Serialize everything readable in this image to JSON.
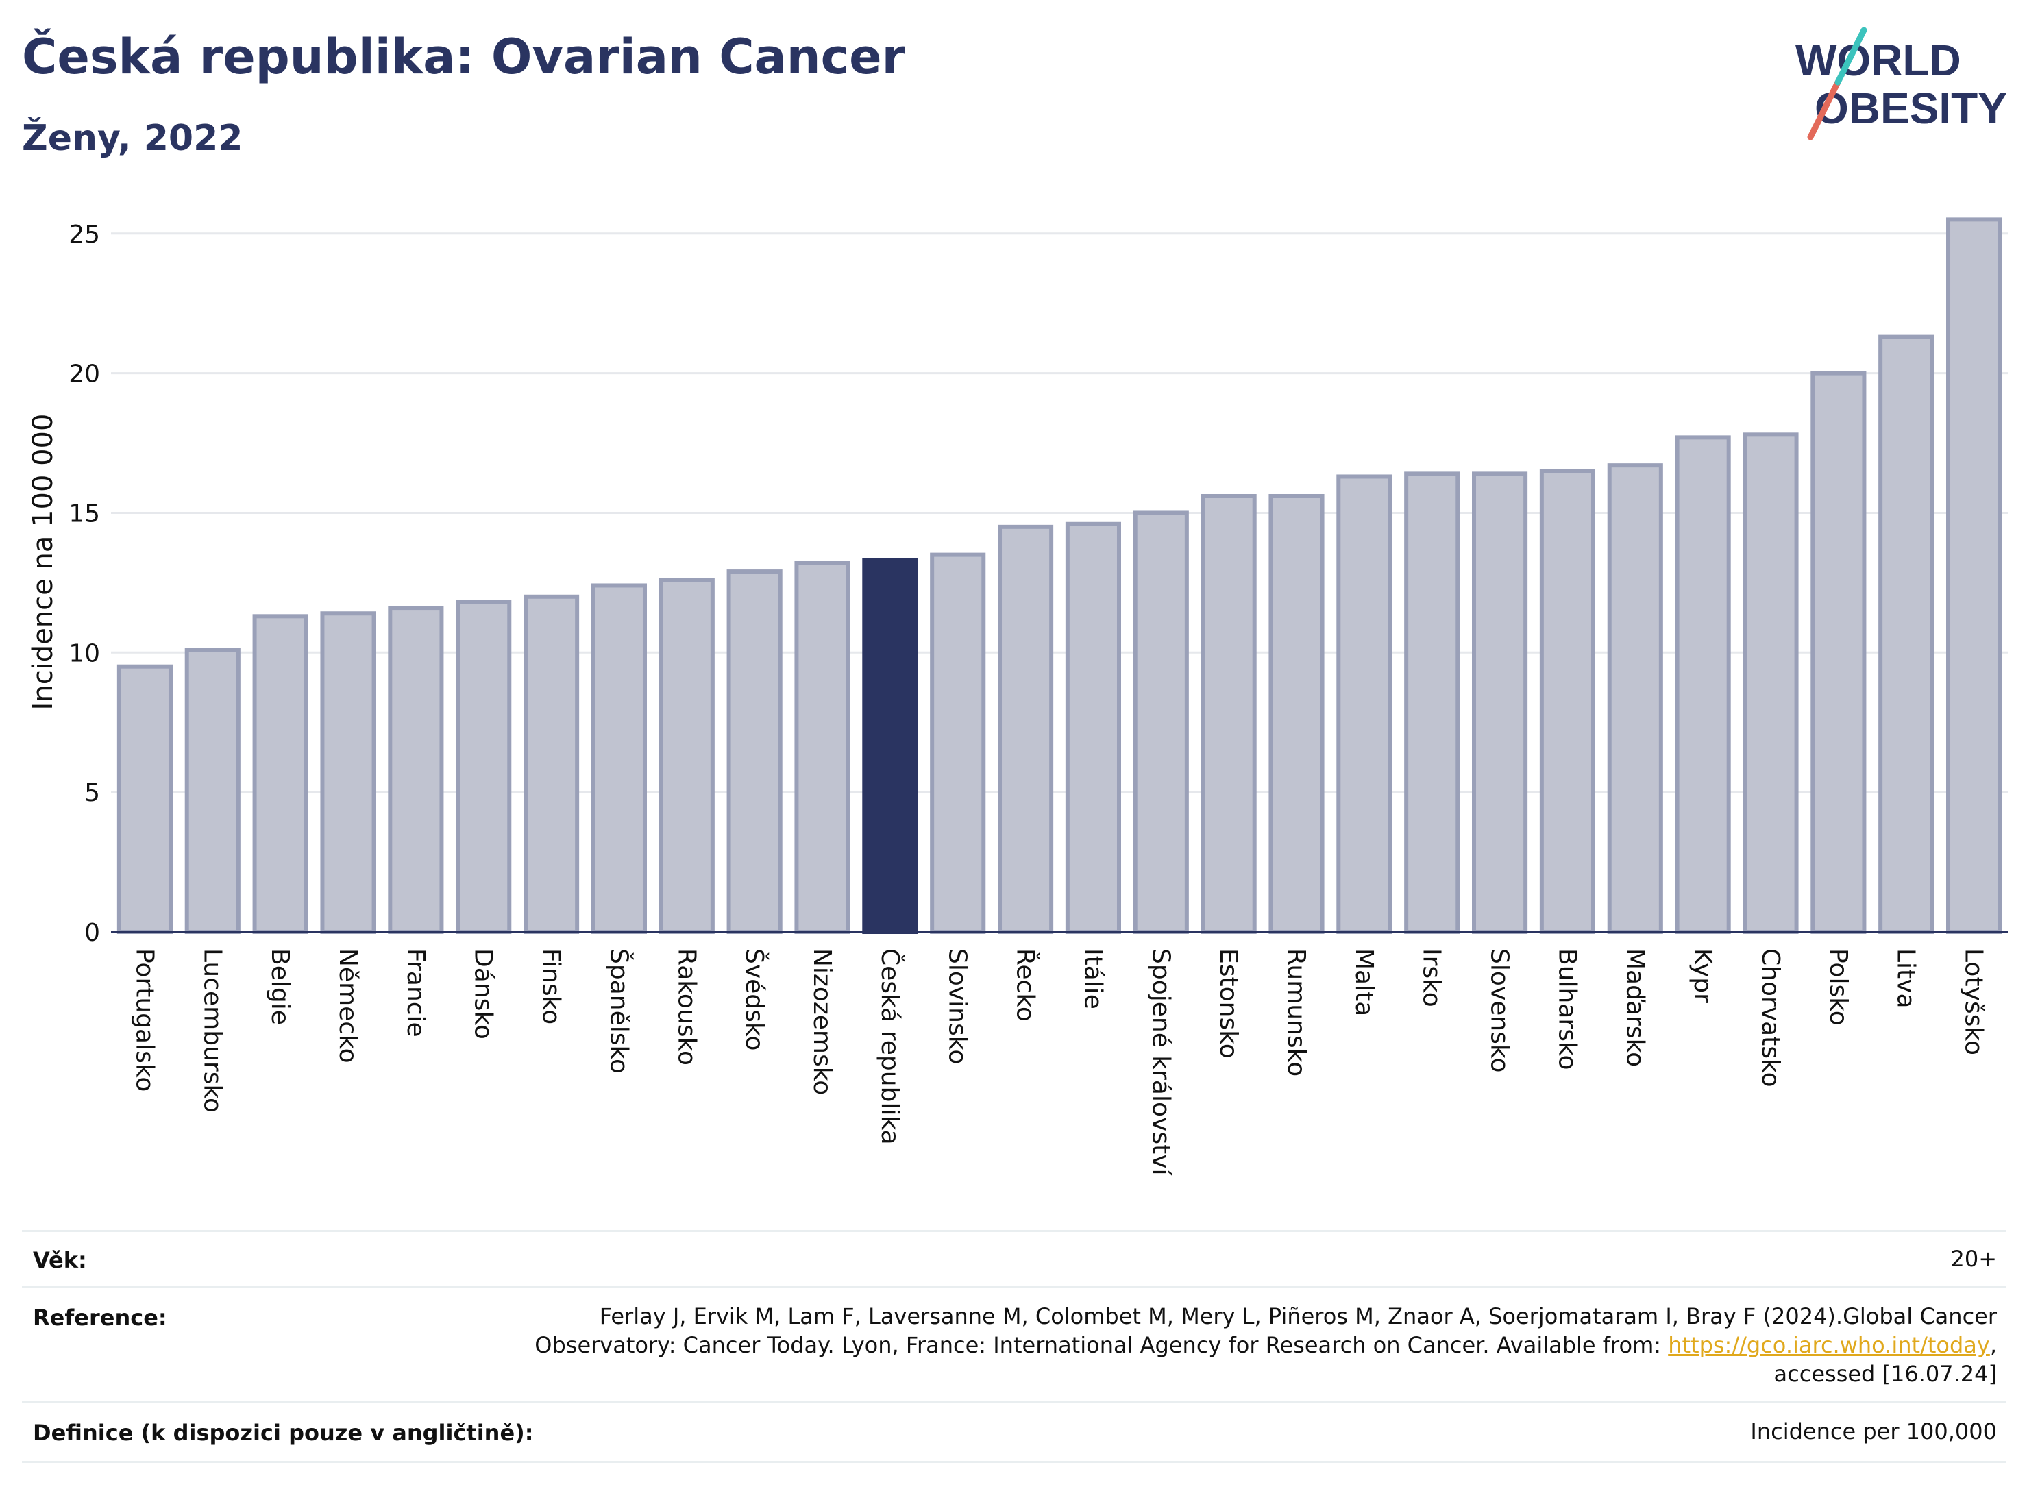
{
  "header": {
    "title": "Česká republika: Ovarian Cancer",
    "subtitle": "Ženy, 2022",
    "logo_line1": "WORLD",
    "logo_line2": "OBESITY"
  },
  "chart_data": {
    "type": "bar",
    "ylabel": "Incidence na 100 000",
    "ylim": [
      0,
      26
    ],
    "yticks": [
      "0",
      "5",
      "10",
      "15",
      "20",
      "25"
    ],
    "grid": true,
    "highlight": "Česká republika",
    "categories": [
      "Portugalsko",
      "Lucembursko",
      "Belgie",
      "Německo",
      "Francie",
      "Dánsko",
      "Finsko",
      "Španělsko",
      "Rakousko",
      "Švédsko",
      "Nizozemsko",
      "Česká republika",
      "Slovinsko",
      "Řecko",
      "Itálie",
      "Spojené království",
      "Estonsko",
      "Rumunsko",
      "Malta",
      "Irsko",
      "Slovensko",
      "Bulharsko",
      "Maďarsko",
      "Kypr",
      "Chorvatsko",
      "Polsko",
      "Litva",
      "Lotyšsko"
    ],
    "values": [
      9.5,
      10.1,
      11.3,
      11.4,
      11.6,
      11.8,
      12.0,
      12.4,
      12.6,
      12.9,
      13.2,
      13.3,
      13.5,
      14.5,
      14.6,
      15.0,
      15.6,
      15.6,
      16.3,
      16.4,
      16.4,
      16.5,
      16.7,
      17.7,
      17.8,
      20.0,
      21.3,
      25.5
    ],
    "colors": {
      "bar": "#c0c3d0",
      "bar_border": "#9aa0b8",
      "highlight": "#2a3461",
      "grid": "#e6e8ec",
      "axis": "#2a3461"
    }
  },
  "info": {
    "age_label": "Věk:",
    "age_value": "20+",
    "ref_label": "Reference:",
    "ref_line1": "Ferlay J, Ervik M, Lam F, Laversanne M, Colombet M, Mery L, Piñeros M, Znaor A, Soerjomataram I, Bray F (2024).Global Cancer",
    "ref_line2_pre": "Observatory: Cancer Today. Lyon, France: International Agency for Research on Cancer. Available from: ",
    "ref_link": "https://gco.iarc.who.int/today",
    "ref_line2_post": ",",
    "ref_line3": "accessed [16.07.24]",
    "def_label": "Definice (k dispozici pouze v angličtině):",
    "def_value": "Incidence per 100,000"
  }
}
